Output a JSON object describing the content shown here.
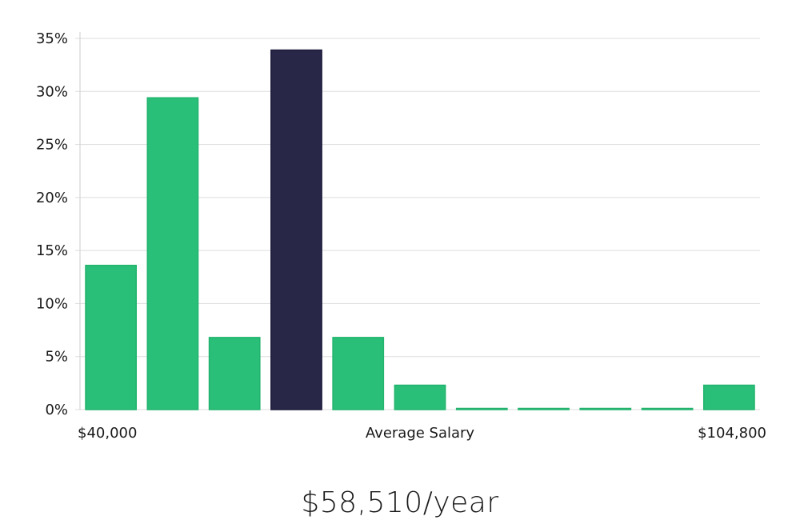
{
  "chart_data": {
    "type": "bar",
    "ylim": [
      0,
      35
    ],
    "yticks": [
      "0%",
      "5%",
      "10%",
      "15%",
      "20%",
      "25%",
      "30%",
      "35%"
    ],
    "ytick_values": [
      0,
      5,
      10,
      15,
      20,
      25,
      30,
      35
    ],
    "values": [
      13.6,
      29.4,
      6.8,
      33.9,
      6.8,
      2.3,
      0,
      0,
      0,
      0,
      2.3
    ],
    "highlight_index": 3,
    "x_start_label": "$40,000",
    "x_center_label": "Average Salary",
    "x_end_label": "$104,800",
    "grid": true
  },
  "colors": {
    "bar": "#29bf78",
    "highlight": "#292747",
    "grid": "#dddddd",
    "axis": "#cccccc"
  },
  "salary_text": "$58,510/year"
}
